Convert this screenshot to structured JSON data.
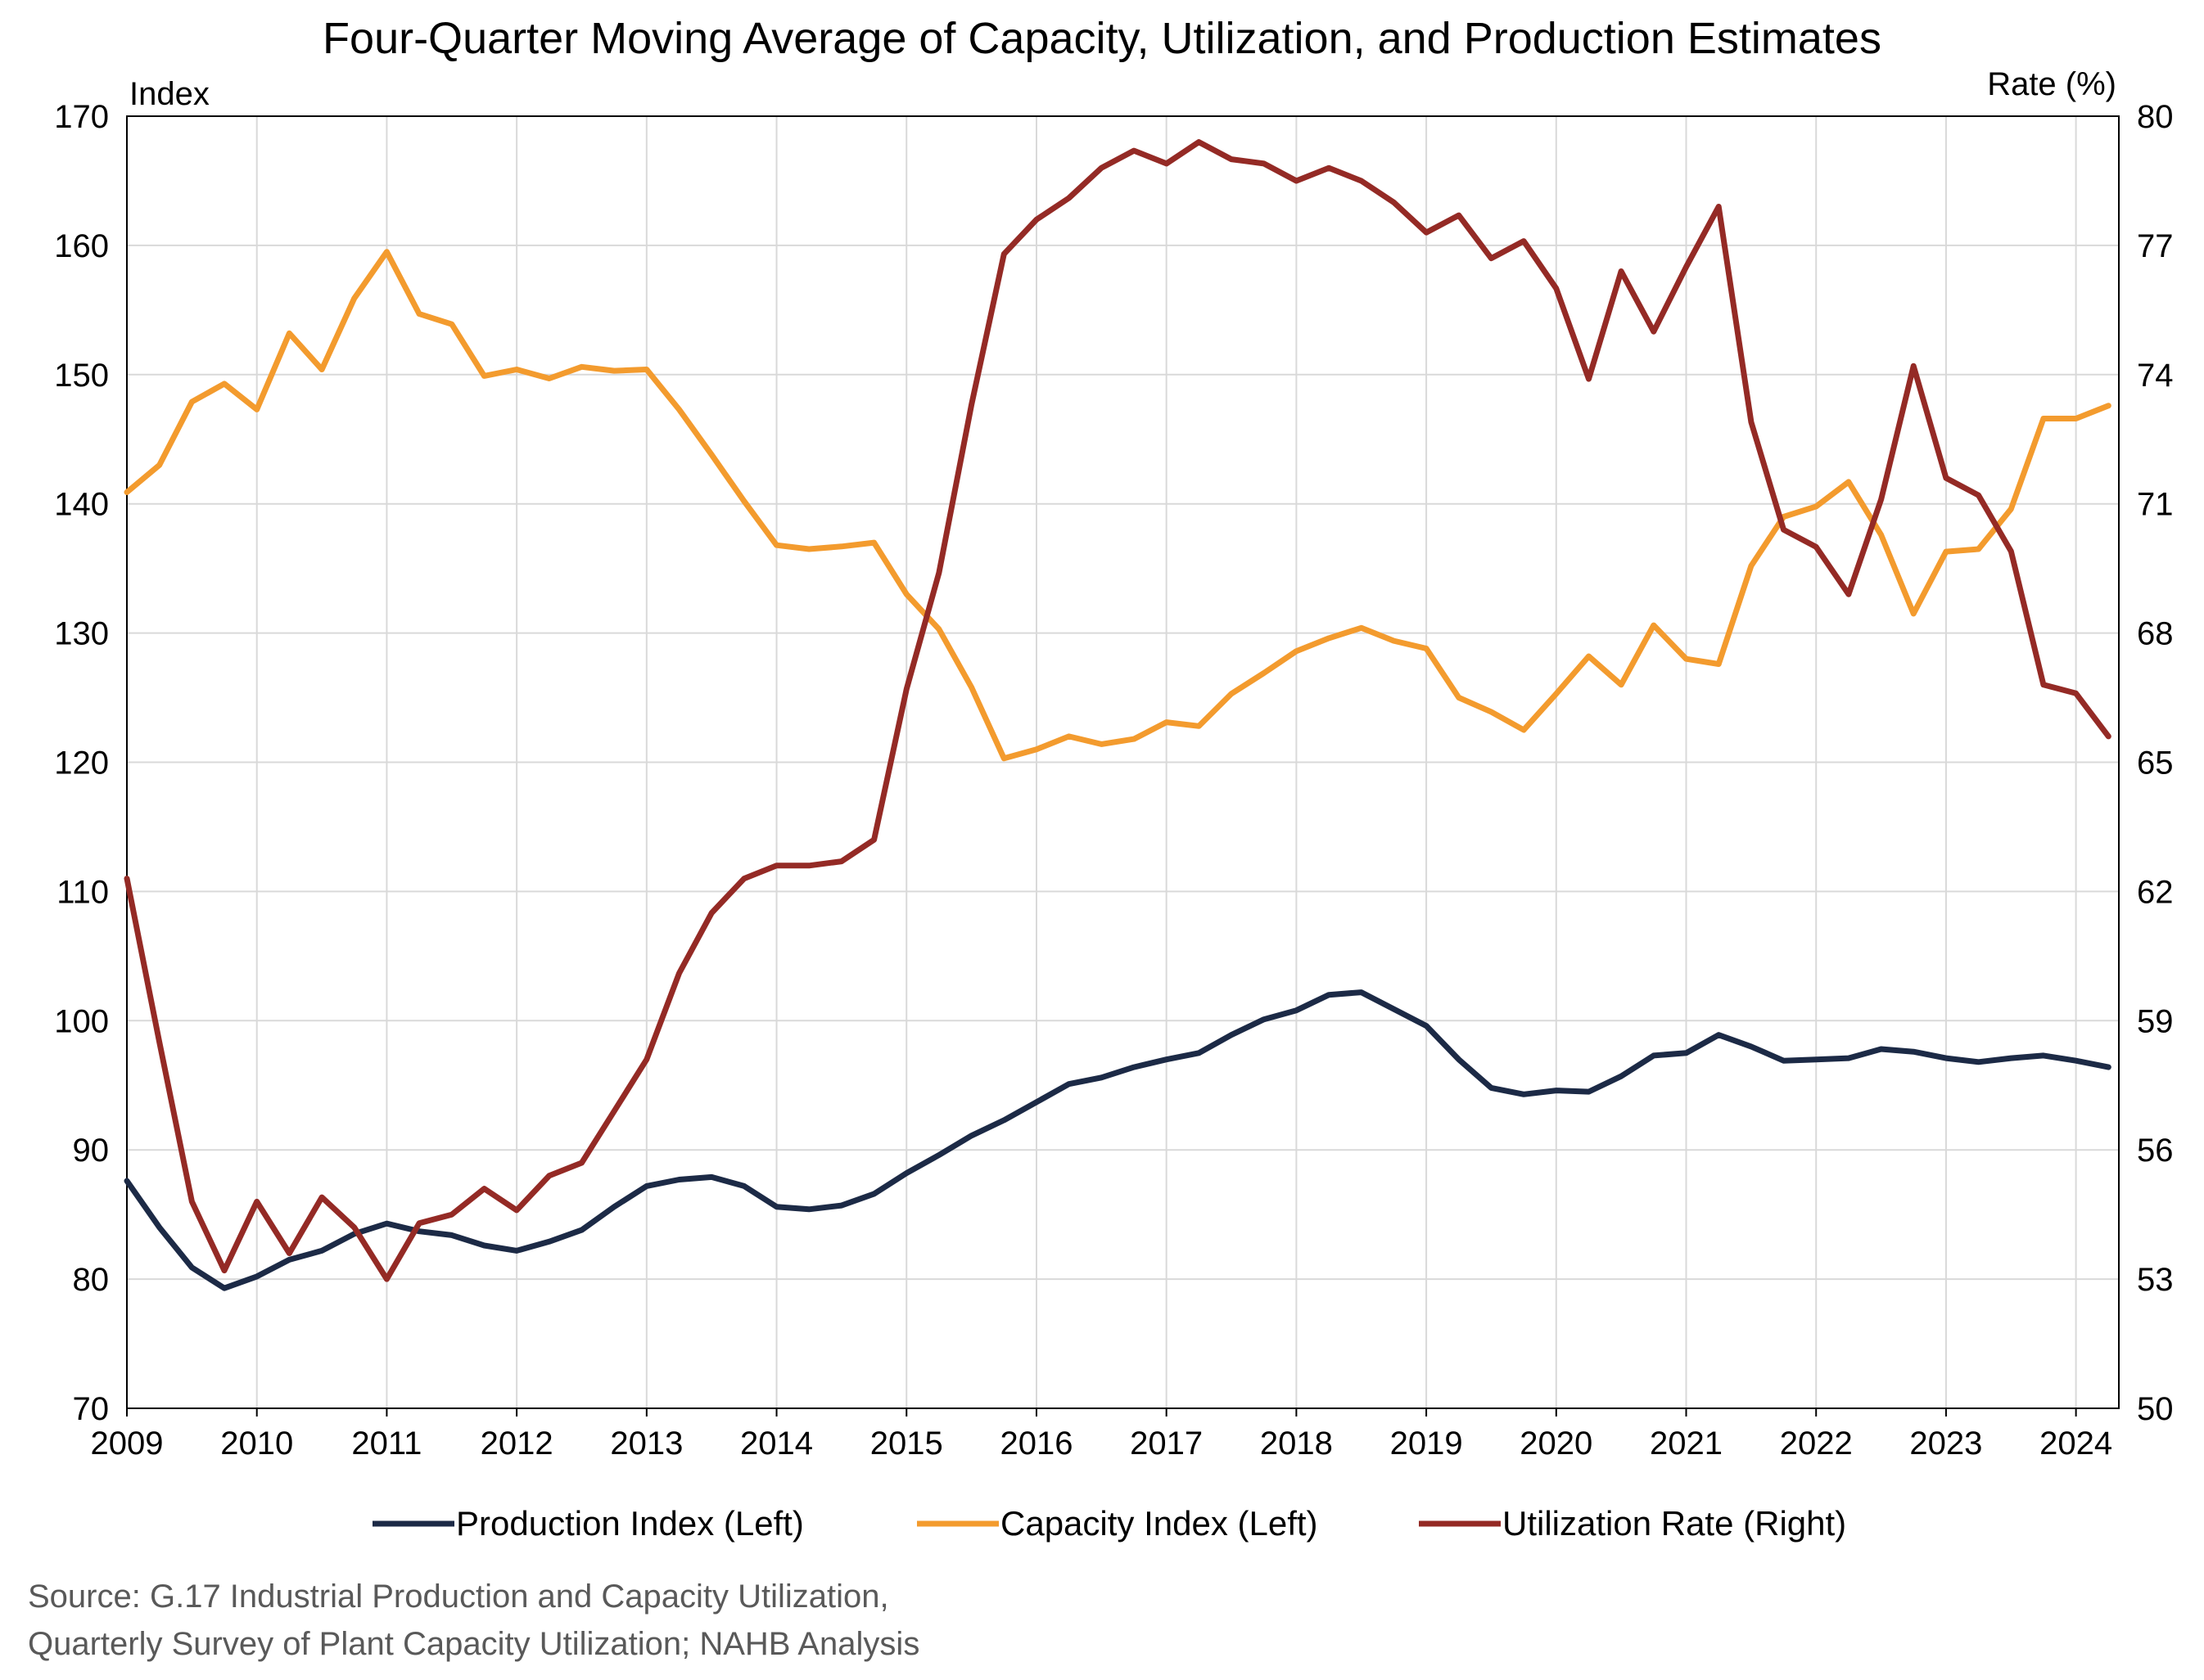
{
  "chart_data": {
    "type": "line",
    "title": "Four-Quarter Moving Average of Capacity, Utilization, and Production Estimates",
    "y_left_label": "Index",
    "y_right_label": "Rate (%)",
    "x_ticks": [
      "2009",
      "2010",
      "2011",
      "2012",
      "2013",
      "2014",
      "2015",
      "2016",
      "2017",
      "2018",
      "2019",
      "2020",
      "2021",
      "2022",
      "2023",
      "2024"
    ],
    "y_left_ticks": [
      "70",
      "80",
      "90",
      "100",
      "110",
      "120",
      "130",
      "140",
      "150",
      "160",
      "170"
    ],
    "y_right_ticks": [
      "50",
      "53",
      "56",
      "59",
      "62",
      "65",
      "68",
      "71",
      "74",
      "77",
      "80"
    ],
    "y_left_lim": [
      70,
      170
    ],
    "y_right_lim": [
      50,
      80
    ],
    "x_lim": [
      2009.0,
      2024.33
    ],
    "grid": true,
    "legend_position": "bottom",
    "x": [
      2009.0,
      2009.25,
      2009.5,
      2009.75,
      2010.0,
      2010.25,
      2010.5,
      2010.75,
      2011.0,
      2011.25,
      2011.5,
      2011.75,
      2012.0,
      2012.25,
      2012.5,
      2012.75,
      2013.0,
      2013.25,
      2013.5,
      2013.75,
      2014.0,
      2014.25,
      2014.5,
      2014.75,
      2015.0,
      2015.25,
      2015.5,
      2015.75,
      2016.0,
      2016.25,
      2016.5,
      2016.75,
      2017.0,
      2017.25,
      2017.5,
      2017.75,
      2018.0,
      2018.25,
      2018.5,
      2018.75,
      2019.0,
      2019.25,
      2019.5,
      2019.75,
      2020.0,
      2020.25,
      2020.5,
      2020.75,
      2021.0,
      2021.25,
      2021.5,
      2021.75,
      2022.0,
      2022.25,
      2022.5,
      2022.75,
      2023.0,
      2023.25,
      2023.5,
      2023.75,
      2024.0,
      2024.25
    ],
    "series": [
      {
        "name": "Production Index (Left)",
        "axis": "left",
        "color": "#1c2a46",
        "values": [
          87.6,
          84.0,
          80.9,
          79.3,
          80.2,
          81.5,
          82.2,
          83.5,
          84.3,
          83.7,
          83.4,
          82.6,
          82.2,
          82.9,
          83.8,
          85.6,
          87.2,
          87.7,
          87.9,
          87.2,
          85.6,
          85.4,
          85.7,
          86.6,
          88.2,
          89.6,
          91.1,
          92.3,
          93.7,
          95.1,
          95.6,
          96.4,
          97.0,
          97.5,
          98.9,
          100.1,
          100.8,
          102.0,
          102.2,
          100.9,
          99.6,
          97.0,
          94.8,
          94.3,
          94.6,
          94.5,
          95.7,
          97.3,
          97.5,
          98.9,
          98.0,
          96.9,
          97.0,
          97.1,
          97.8,
          97.6,
          97.1,
          96.8,
          97.1,
          97.3,
          96.9,
          96.4
        ]
      },
      {
        "name": "Capacity Index (Left)",
        "axis": "left",
        "color": "#f39b2e",
        "values": [
          140.9,
          143.0,
          147.9,
          149.3,
          147.3,
          153.2,
          150.4,
          155.9,
          159.5,
          154.7,
          153.9,
          149.9,
          150.4,
          149.7,
          150.6,
          150.3,
          150.4,
          147.3,
          143.8,
          140.2,
          136.8,
          136.5,
          136.7,
          137.0,
          133.0,
          130.3,
          125.8,
          120.3,
          121.0,
          122.0,
          121.4,
          121.8,
          123.1,
          122.8,
          125.3,
          126.9,
          128.6,
          129.6,
          130.4,
          129.4,
          128.8,
          125.0,
          123.9,
          122.5,
          125.3,
          128.2,
          126.0,
          130.6,
          128.0,
          127.6,
          135.2,
          139.0,
          139.8,
          141.7,
          137.6,
          131.5,
          136.3,
          136.5,
          139.6,
          146.6,
          146.6,
          147.6
        ]
      },
      {
        "name": "Utilization Rate (Right)",
        "axis": "right",
        "color": "#942a25",
        "values": [
          62.3,
          58.5,
          54.8,
          53.2,
          54.8,
          53.6,
          54.9,
          54.2,
          53.0,
          54.3,
          54.5,
          55.1,
          54.6,
          55.4,
          55.7,
          56.9,
          58.1,
          60.1,
          61.5,
          62.3,
          62.6,
          62.6,
          62.7,
          63.2,
          66.7,
          69.4,
          73.3,
          76.8,
          77.6,
          78.1,
          78.8,
          79.2,
          78.9,
          79.4,
          79.0,
          78.9,
          78.5,
          78.8,
          78.5,
          78.0,
          77.3,
          77.7,
          76.7,
          77.1,
          76.0,
          73.9,
          76.4,
          75.0,
          76.5,
          77.9,
          72.9,
          70.4,
          70.0,
          68.9,
          71.1,
          74.2,
          71.6,
          71.2,
          69.9,
          66.8,
          66.6,
          65.6
        ]
      }
    ]
  },
  "source_lines": [
    "Source: G.17 Industrial Production and Capacity Utilization,",
    "Quarterly Survey of Plant Capacity Utilization; NAHB Analysis"
  ]
}
